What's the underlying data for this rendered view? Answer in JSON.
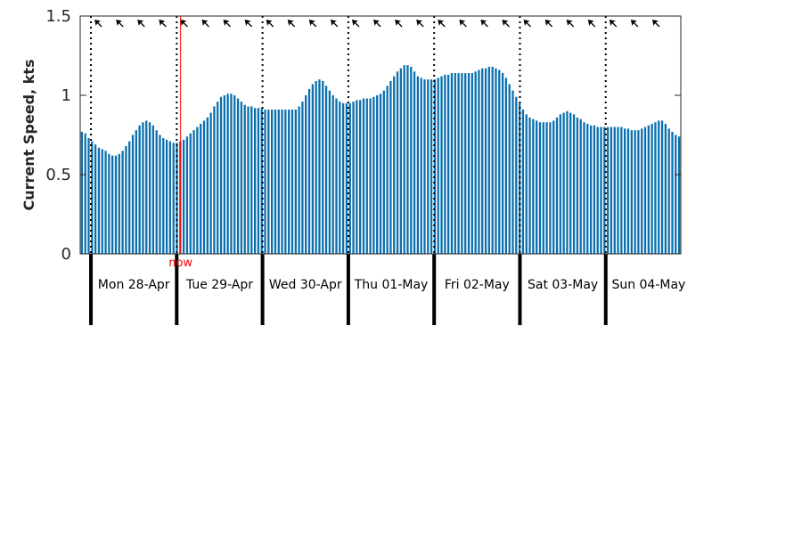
{
  "chart_data": {
    "type": "bar",
    "ylabel": "Current Speed, kts",
    "ylim": [
      0,
      1.5
    ],
    "yticks": [
      0,
      0.5,
      1,
      1.5
    ],
    "ytick_labels": [
      "0",
      "0.5",
      "1",
      "1.5"
    ],
    "x_unit": "days from start of plot (start = Sun 27-Apr ~21:00)",
    "xlim": [
      0,
      7
    ],
    "day_separators": [
      0.125,
      1.125,
      2.125,
      3.125,
      4.125,
      5.125,
      6.125
    ],
    "day_labels": [
      "Mon 28-Apr",
      "Tue 29-Apr",
      "Wed 30-Apr",
      "Thu 01-May",
      "Fri 02-May",
      "Sat 03-May",
      "Sun 04-May"
    ],
    "now_label": "now",
    "now_x": 1.17,
    "bar_color": "#0a6fae",
    "now_color": "#ff0000",
    "direction_arrows": "north-west (arrowheads along top edge)",
    "series": [
      {
        "values": [
          0.77,
          0.76,
          0.73,
          0.71,
          0.69,
          0.67,
          0.66,
          0.65,
          0.63,
          0.62,
          0.62,
          0.63,
          0.65,
          0.68,
          0.71,
          0.75,
          0.78,
          0.81,
          0.83,
          0.84,
          0.83,
          0.81,
          0.78,
          0.75,
          0.73,
          0.72,
          0.71,
          0.7,
          0.7,
          0.71,
          0.72,
          0.74,
          0.76,
          0.78,
          0.8,
          0.82,
          0.84,
          0.86,
          0.89,
          0.93,
          0.96,
          0.99,
          1.0,
          1.01,
          1.01,
          1.0,
          0.98,
          0.96,
          0.94,
          0.93,
          0.93,
          0.92,
          0.92,
          0.92,
          0.91,
          0.91,
          0.91,
          0.91,
          0.91,
          0.91,
          0.91,
          0.91,
          0.91,
          0.91,
          0.93,
          0.96,
          1.0,
          1.04,
          1.07,
          1.09,
          1.1,
          1.09,
          1.06,
          1.03,
          1.0,
          0.98,
          0.96,
          0.95,
          0.95,
          0.95,
          0.96,
          0.97,
          0.97,
          0.98,
          0.98,
          0.98,
          0.99,
          1.0,
          1.01,
          1.03,
          1.06,
          1.09,
          1.12,
          1.15,
          1.17,
          1.19,
          1.19,
          1.18,
          1.15,
          1.12,
          1.11,
          1.1,
          1.1,
          1.1,
          1.1,
          1.11,
          1.12,
          1.13,
          1.13,
          1.14,
          1.14,
          1.14,
          1.14,
          1.14,
          1.14,
          1.14,
          1.15,
          1.16,
          1.17,
          1.17,
          1.18,
          1.18,
          1.17,
          1.16,
          1.14,
          1.11,
          1.07,
          1.03,
          0.99,
          0.95,
          0.91,
          0.88,
          0.86,
          0.85,
          0.84,
          0.83,
          0.83,
          0.83,
          0.83,
          0.84,
          0.86,
          0.88,
          0.89,
          0.9,
          0.89,
          0.88,
          0.86,
          0.85,
          0.83,
          0.82,
          0.81,
          0.81,
          0.8,
          0.8,
          0.8,
          0.8,
          0.8,
          0.8,
          0.8,
          0.8,
          0.79,
          0.79,
          0.78,
          0.78,
          0.78,
          0.79,
          0.8,
          0.81,
          0.82,
          0.83,
          0.84,
          0.84,
          0.82,
          0.79,
          0.77,
          0.75,
          0.74
        ]
      }
    ]
  }
}
